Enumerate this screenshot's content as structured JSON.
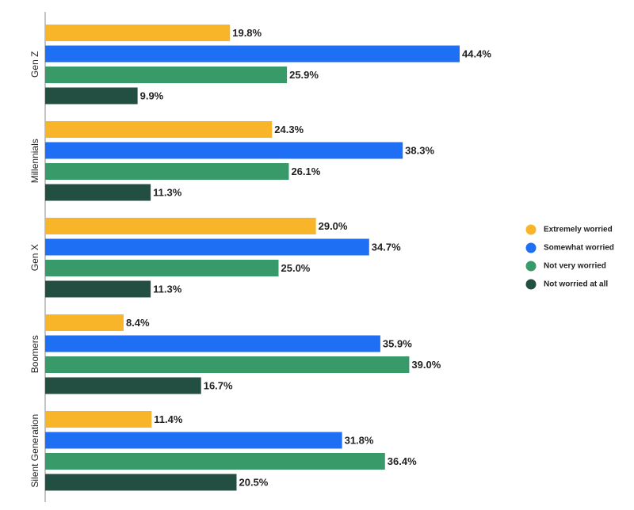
{
  "chart_data": {
    "type": "bar",
    "orientation": "horizontal",
    "categories": [
      "Gen Z",
      "Millennials",
      "Gen X",
      "Boomers",
      "Silent Generation"
    ],
    "series": [
      {
        "name": "Extremely worried",
        "color": "#f9b529",
        "values": [
          19.8,
          24.3,
          29.0,
          8.4,
          11.4
        ],
        "value_labels": [
          "19.8%",
          "24.3%",
          "29.0%",
          "8.4%",
          "11.4%"
        ]
      },
      {
        "name": "Somewhat worried",
        "color": "#1f6ff4",
        "values": [
          44.4,
          38.3,
          34.7,
          35.9,
          31.8
        ],
        "value_labels": [
          "44.4%",
          "38.3%",
          "34.7%",
          "35.9%",
          "31.8%"
        ]
      },
      {
        "name": "Not very worried",
        "color": "#389a69",
        "values": [
          25.9,
          26.1,
          25.0,
          39.0,
          36.4
        ],
        "value_labels": [
          "25.9%",
          "26.1%",
          "25.0%",
          "39.0%",
          "36.4%"
        ]
      },
      {
        "name": "Not worried at all",
        "color": "#234e42",
        "values": [
          9.9,
          11.3,
          11.3,
          16.7,
          20.5
        ],
        "value_labels": [
          "9.9%",
          "11.3%",
          "11.3%",
          "16.7%",
          "20.5%"
        ]
      }
    ],
    "legend": "right"
  }
}
